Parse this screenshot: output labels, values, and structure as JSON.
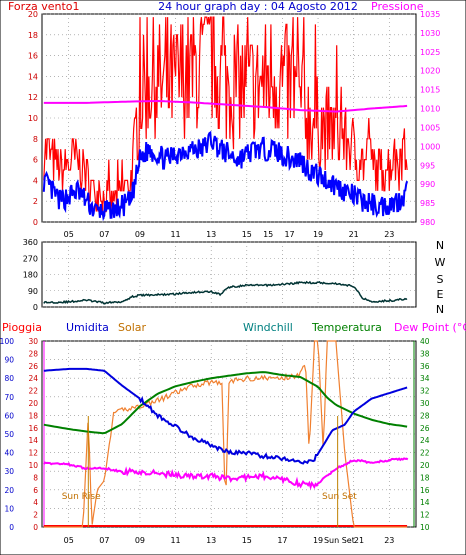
{
  "top": {
    "title": "24 hour graph day : 04 Agosto 2012",
    "left_label": "Forza vento1",
    "right_label": "Pressione",
    "left_ticks": [
      "0",
      "2",
      "4",
      "6",
      "8",
      "10",
      "12",
      "14",
      "16",
      "18",
      "20"
    ],
    "right_ticks": [
      "980",
      "985",
      "990",
      "995",
      "1000",
      "1005",
      "1010",
      "1015",
      "1020",
      "1025",
      "1030",
      "1035"
    ],
    "x_ticks": [
      "05",
      "07",
      "09",
      "11",
      "13",
      "15",
      "15",
      "17",
      "19",
      "21",
      "23"
    ]
  },
  "mid": {
    "left_ticks": [
      "0",
      "90",
      "180",
      "270",
      "360"
    ],
    "compass": [
      "N",
      "W",
      "S",
      "E",
      "N"
    ],
    "x_ticks": []
  },
  "bottom": {
    "labels": {
      "pioggia": "Pioggia",
      "umidita": "Umidita",
      "solar": "Solar",
      "windchill": "Windchill",
      "temperatura": "Temperatura",
      "dewpoint": "Dew Point (°C)"
    },
    "humidity_ticks": [
      "0",
      "10",
      "20",
      "30",
      "40",
      "50",
      "60",
      "70",
      "80",
      "90",
      "100"
    ],
    "dewpoint_ticks": [
      "0",
      "2",
      "4",
      "6",
      "8",
      "10",
      "12",
      "14",
      "16",
      "18",
      "20",
      "22",
      "24",
      "26",
      "28",
      "30"
    ],
    "temp_ticks": [
      "10",
      "12",
      "14",
      "16",
      "18",
      "20",
      "22",
      "24",
      "26",
      "28",
      "30",
      "32",
      "34",
      "36",
      "38",
      "40"
    ],
    "x_ticks": [
      "05",
      "07",
      "09",
      "11",
      "13",
      "15",
      "17",
      "19",
      "Sun Set",
      "21",
      "23"
    ],
    "sun_rise": "Sun Rise",
    "sun_set": "Sun Set"
  },
  "colors": {
    "wind": "#ff0000",
    "wind_avg": "#0000ff",
    "pressure": "#ff00ff",
    "direction": "#003333",
    "humidity": "#0000dd",
    "solar": "#f08030",
    "temperature": "#008000",
    "dewpoint": "#ff00ff",
    "rain": "#ff0000",
    "green_axis": "#008000",
    "magenta_axis": "#ff00ff"
  },
  "chart_data": [
    {
      "type": "line",
      "title": "24 hour graph day : 04 Agosto 2012",
      "x_unit": "hour",
      "xlim": [
        3.5,
        24.5
      ],
      "ylim_left": [
        0,
        20
      ],
      "ylim_right": [
        980,
        1035
      ],
      "grid": true,
      "series": [
        {
          "name": "Forza vento1",
          "axis": "left",
          "x": [
            3.6,
            4.5,
            5.5,
            6.5,
            7.5,
            8.5,
            9.0,
            9.5,
            10.5,
            11.5,
            12.5,
            13.0,
            13.5,
            14.5,
            15.5,
            16.5,
            17.5,
            18.0,
            18.5,
            19.5,
            20.5,
            21.5,
            22.5,
            23.5,
            24.0
          ],
          "values": [
            7,
            5,
            6,
            3,
            2,
            4,
            12,
            14,
            13,
            14,
            15,
            16,
            14,
            13,
            13,
            14,
            13,
            12,
            10,
            9,
            8,
            6,
            5,
            6,
            7
          ]
        },
        {
          "name": "",
          "axis": "left",
          "x": [
            3.6,
            4.5,
            5.5,
            6.5,
            7.5,
            8.5,
            9.0,
            9.5,
            10.5,
            11.5,
            12.5,
            13.0,
            13.5,
            14.5,
            15.5,
            16.5,
            17.5,
            18.0,
            18.5,
            19.5,
            20.5,
            21.5,
            22.5,
            23.5,
            24.0
          ],
          "values": [
            4,
            2,
            3,
            1,
            1,
            2,
            6,
            7,
            6,
            7,
            7,
            8,
            7,
            6,
            7,
            7,
            6,
            6,
            5,
            4,
            3,
            2,
            1.5,
            2,
            3
          ]
        },
        {
          "name": "Pressione",
          "axis": "right",
          "x": [
            3.6,
            6,
            8,
            10,
            12,
            14,
            16,
            18,
            20,
            22,
            24
          ],
          "values": [
            1011.5,
            1011.5,
            1011.8,
            1012,
            1011.6,
            1011,
            1010.4,
            1009.6,
            1009.2,
            1010,
            1010.7
          ]
        }
      ]
    },
    {
      "type": "line",
      "x_unit": "hour",
      "xlim": [
        3.5,
        24.5
      ],
      "ylim": [
        0,
        360
      ],
      "yticks": [
        0,
        90,
        180,
        270,
        360
      ],
      "series": [
        {
          "name": "",
          "x": [
            3.6,
            5,
            6,
            7,
            8,
            8.5,
            9,
            10,
            11,
            12,
            13,
            13.5,
            14,
            15,
            16,
            17,
            18,
            19,
            20,
            21,
            21.5,
            22,
            23,
            24
          ],
          "values": [
            25,
            28,
            38,
            22,
            30,
            55,
            65,
            68,
            72,
            82,
            85,
            70,
            110,
            120,
            120,
            125,
            135,
            135,
            130,
            115,
            50,
            30,
            35,
            45
          ]
        }
      ]
    },
    {
      "type": "line",
      "x_unit": "hour",
      "xlim": [
        3.5,
        24.5
      ],
      "ylim_humidity": [
        0,
        100
      ],
      "ylim_dewpoint": [
        0,
        30
      ],
      "ylim_temperature": [
        10,
        40
      ],
      "series": [
        {
          "name": "Umidita",
          "axis": "humidity",
          "x": [
            3.6,
            5,
            6,
            7,
            7.5,
            8,
            9,
            10,
            11,
            12,
            13,
            14,
            15,
            16,
            17,
            18,
            18.7,
            19.3,
            19.8,
            20.5,
            21,
            22,
            23,
            24
          ],
          "values": [
            84,
            85,
            85,
            84,
            80,
            76,
            69,
            60,
            54,
            48,
            44,
            40,
            40,
            38,
            37,
            35,
            35,
            44,
            52,
            55,
            62,
            69,
            72,
            75
          ]
        },
        {
          "name": "Temperatura",
          "axis": "temperature",
          "x": [
            3.6,
            5,
            6,
            7,
            8,
            9,
            10,
            11,
            12,
            13,
            14,
            15,
            16,
            17,
            18,
            19,
            19.5,
            20,
            21,
            22,
            23,
            24
          ],
          "values": [
            26.5,
            25.8,
            25.4,
            25.1,
            26.6,
            29.5,
            31.5,
            32.7,
            33.4,
            34,
            34.4,
            34.8,
            35,
            34.5,
            34.2,
            32.6,
            30.9,
            29.7,
            28.3,
            27.3,
            26.6,
            26.2
          ]
        },
        {
          "name": "Solar",
          "axis": "humidity",
          "x": [
            3.6,
            5,
            5.8,
            6.1,
            6.3,
            6.6,
            7,
            7.5,
            8,
            9,
            10,
            11,
            12,
            13,
            13.6,
            13.8,
            14,
            15,
            16,
            17,
            18,
            18.3,
            18.5,
            18.8,
            19,
            19.3,
            19.5,
            20,
            20.5,
            21,
            22,
            23,
            24
          ],
          "values": [
            0,
            0,
            0,
            60,
            0,
            20,
            25,
            60,
            63,
            65,
            68,
            72,
            76,
            78,
            78,
            10,
            78,
            80,
            80,
            80,
            82,
            88,
            40,
            100,
            100,
            40,
            100,
            100,
            40,
            0,
            0,
            0,
            0
          ]
        },
        {
          "name": "Dew Point (°C)",
          "axis": "dewpoint",
          "x": [
            3.6,
            5,
            6,
            7,
            8,
            9,
            10,
            11,
            12,
            13,
            14,
            15,
            16,
            17,
            18,
            18.8,
            19.3,
            20,
            21,
            22,
            23,
            24
          ],
          "values": [
            10.3,
            10.1,
            9.4,
            9.5,
            8.9,
            9,
            8.6,
            8.4,
            8.2,
            8.2,
            7.8,
            8,
            8.2,
            7.6,
            7,
            6.6,
            7.8,
            9.4,
            10.8,
            10.4,
            10.8,
            11
          ]
        },
        {
          "name": "Pioggia",
          "axis": "humidity",
          "x": [
            3.6,
            24
          ],
          "values": [
            0,
            0
          ]
        }
      ]
    }
  ]
}
